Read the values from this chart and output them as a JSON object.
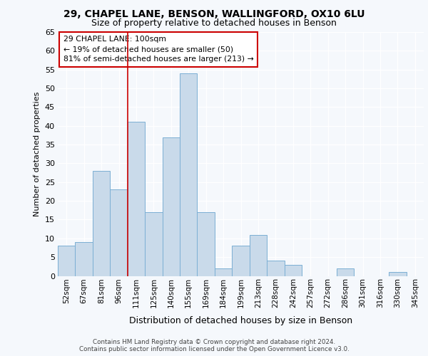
{
  "title1": "29, CHAPEL LANE, BENSON, WALLINGFORD, OX10 6LU",
  "title2": "Size of property relative to detached houses in Benson",
  "xlabel": "Distribution of detached houses by size in Benson",
  "ylabel": "Number of detached properties",
  "categories": [
    "52sqm",
    "67sqm",
    "81sqm",
    "96sqm",
    "111sqm",
    "125sqm",
    "140sqm",
    "155sqm",
    "169sqm",
    "184sqm",
    "199sqm",
    "213sqm",
    "228sqm",
    "242sqm",
    "257sqm",
    "272sqm",
    "286sqm",
    "301sqm",
    "316sqm",
    "330sqm",
    "345sqm"
  ],
  "values": [
    8,
    9,
    28,
    23,
    41,
    17,
    37,
    54,
    17,
    2,
    8,
    11,
    4,
    3,
    0,
    0,
    2,
    0,
    0,
    1,
    0
  ],
  "bar_color": "#c9daea",
  "bar_edge_color": "#7bafd4",
  "red_line_x": 3.5,
  "red_color": "#cc0000",
  "annotation_text": "29 CHAPEL LANE: 100sqm\n← 19% of detached houses are smaller (50)\n81% of semi-detached houses are larger (213) →",
  "annotation_box_facecolor": "#ffffff",
  "annotation_box_edgecolor": "#cc0000",
  "ylim_max": 65,
  "yticks": [
    0,
    5,
    10,
    15,
    20,
    25,
    30,
    35,
    40,
    45,
    50,
    55,
    60,
    65
  ],
  "footer1": "Contains HM Land Registry data © Crown copyright and database right 2024.",
  "footer2": "Contains public sector information licensed under the Open Government Licence v3.0.",
  "bg_color": "#f5f8fc",
  "grid_color": "#ffffff"
}
